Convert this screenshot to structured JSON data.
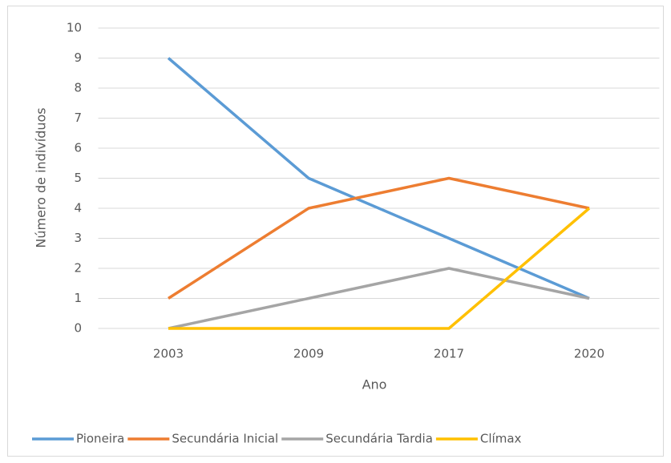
{
  "chart_data": {
    "type": "line",
    "categories": [
      "2003",
      "2009",
      "2017",
      "2020"
    ],
    "series": [
      {
        "name": "Pioneira",
        "color": "#5b9bd5",
        "values": [
          9,
          5,
          3,
          1
        ]
      },
      {
        "name": "Secundária Inicial",
        "color": "#ed7d31",
        "values": [
          1,
          4,
          5,
          4
        ]
      },
      {
        "name": "Secundária Tardia",
        "color": "#a5a5a5",
        "values": [
          0,
          1,
          2,
          1
        ]
      },
      {
        "name": "Clímax",
        "color": "#ffc000",
        "values": [
          0,
          0,
          0,
          4
        ]
      }
    ],
    "x_label": "Ano",
    "y_label": "Número de indivíduos",
    "ylim": [
      0,
      10
    ],
    "yticks": [
      0,
      1,
      2,
      3,
      4,
      5,
      6,
      7,
      8,
      9,
      10
    ],
    "grid": true,
    "legend": "bottom"
  }
}
